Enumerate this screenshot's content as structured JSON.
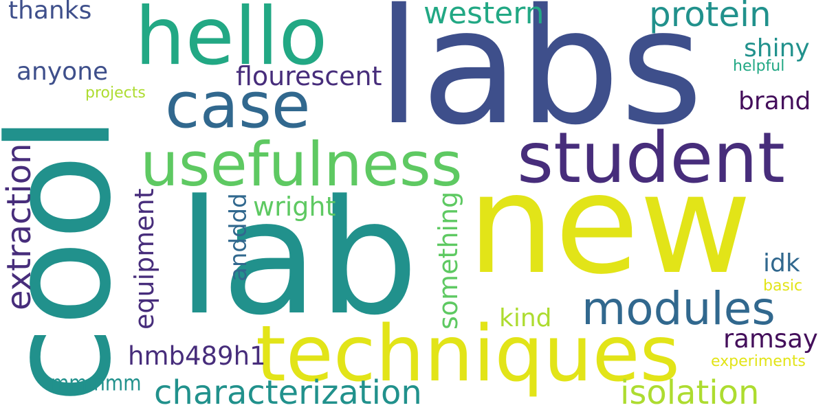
{
  "words": {
    "labs": "labs",
    "new": "new",
    "lab": "lab",
    "cool": "cool",
    "techniques": "techniques",
    "usefulness": "usefulness",
    "hello": "hello",
    "student": "student",
    "case": "case",
    "modules": "modules",
    "extraction": "extraction",
    "characterization": "characterization",
    "isolation": "isolation",
    "protein": "protein",
    "western": "western",
    "flourescent": "flourescent",
    "equipment": "equipment",
    "something": "something",
    "andddd": "andddd",
    "wright": "wright",
    "hmb489h1": "hmb489h1",
    "ramsay": "ramsay",
    "thanks": "thanks",
    "anyone": "anyone",
    "shiny": "shiny",
    "brand": "brand",
    "idk": "idk",
    "kind": "kind",
    "mmmmm": "mmmmm",
    "helpful": "helpful",
    "projects": "projects",
    "basic": "basic",
    "experiments": "experiments"
  },
  "colors": {
    "dark_blue": "#3e4f8b",
    "indigo": "#472d7b",
    "dark_purple": "#440f5b",
    "slate": "#31688e",
    "teal": "#21918c",
    "green_teal": "#22a884",
    "green": "#5ec962",
    "lime": "#addc30",
    "yellow": "#e2e418"
  }
}
